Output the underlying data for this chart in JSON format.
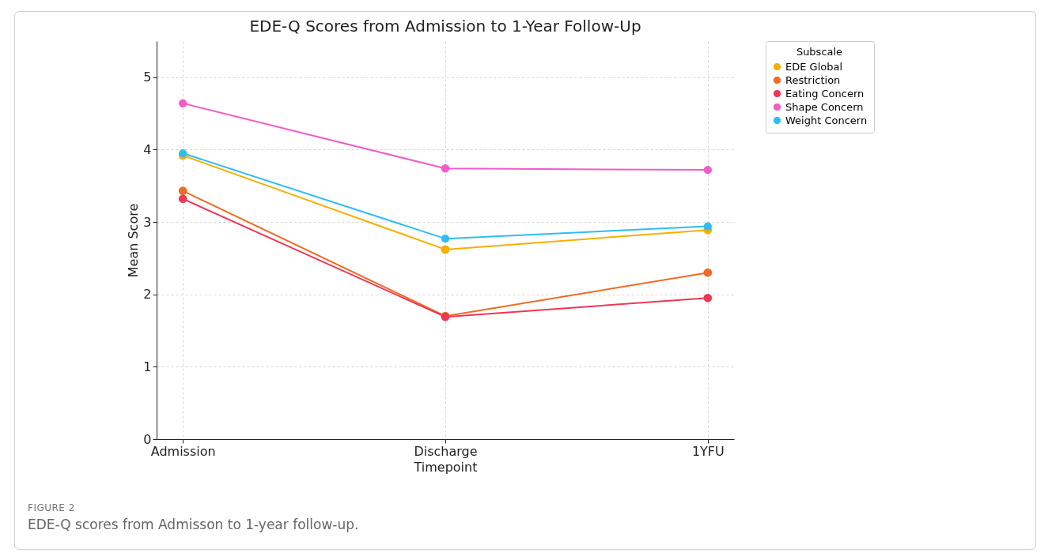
{
  "chart_data": {
    "type": "line",
    "title": "EDE-Q Scores from Admission to 1-Year Follow-Up",
    "xlabel": "Timepoint",
    "ylabel": "Mean Score",
    "legend_title": "Subscale",
    "categories": [
      "Admission",
      "Discharge",
      "1YFU"
    ],
    "series": [
      {
        "name": "EDE Global",
        "color": "#f5b000",
        "values": [
          3.92,
          2.62,
          2.89
        ]
      },
      {
        "name": "Restriction",
        "color": "#f06b23",
        "values": [
          3.43,
          1.7,
          2.3
        ]
      },
      {
        "name": "Eating Concern",
        "color": "#ee3656",
        "values": [
          3.32,
          1.69,
          1.95
        ]
      },
      {
        "name": "Shape Concern",
        "color": "#f25cc8",
        "values": [
          4.64,
          3.74,
          3.72
        ]
      },
      {
        "name": "Weight Concern",
        "color": "#2ebcf2",
        "values": [
          3.95,
          2.77,
          2.94
        ]
      }
    ],
    "ylim": [
      0,
      5.5
    ],
    "yticks": [
      0,
      1,
      2,
      3,
      4,
      5
    ],
    "grid": true,
    "legend": "top right",
    "marker": "circle",
    "line_style": "solid",
    "annotations": [
      "FIGURE 2",
      "EDE-Q scores from Admisson to 1-year follow-up."
    ]
  }
}
